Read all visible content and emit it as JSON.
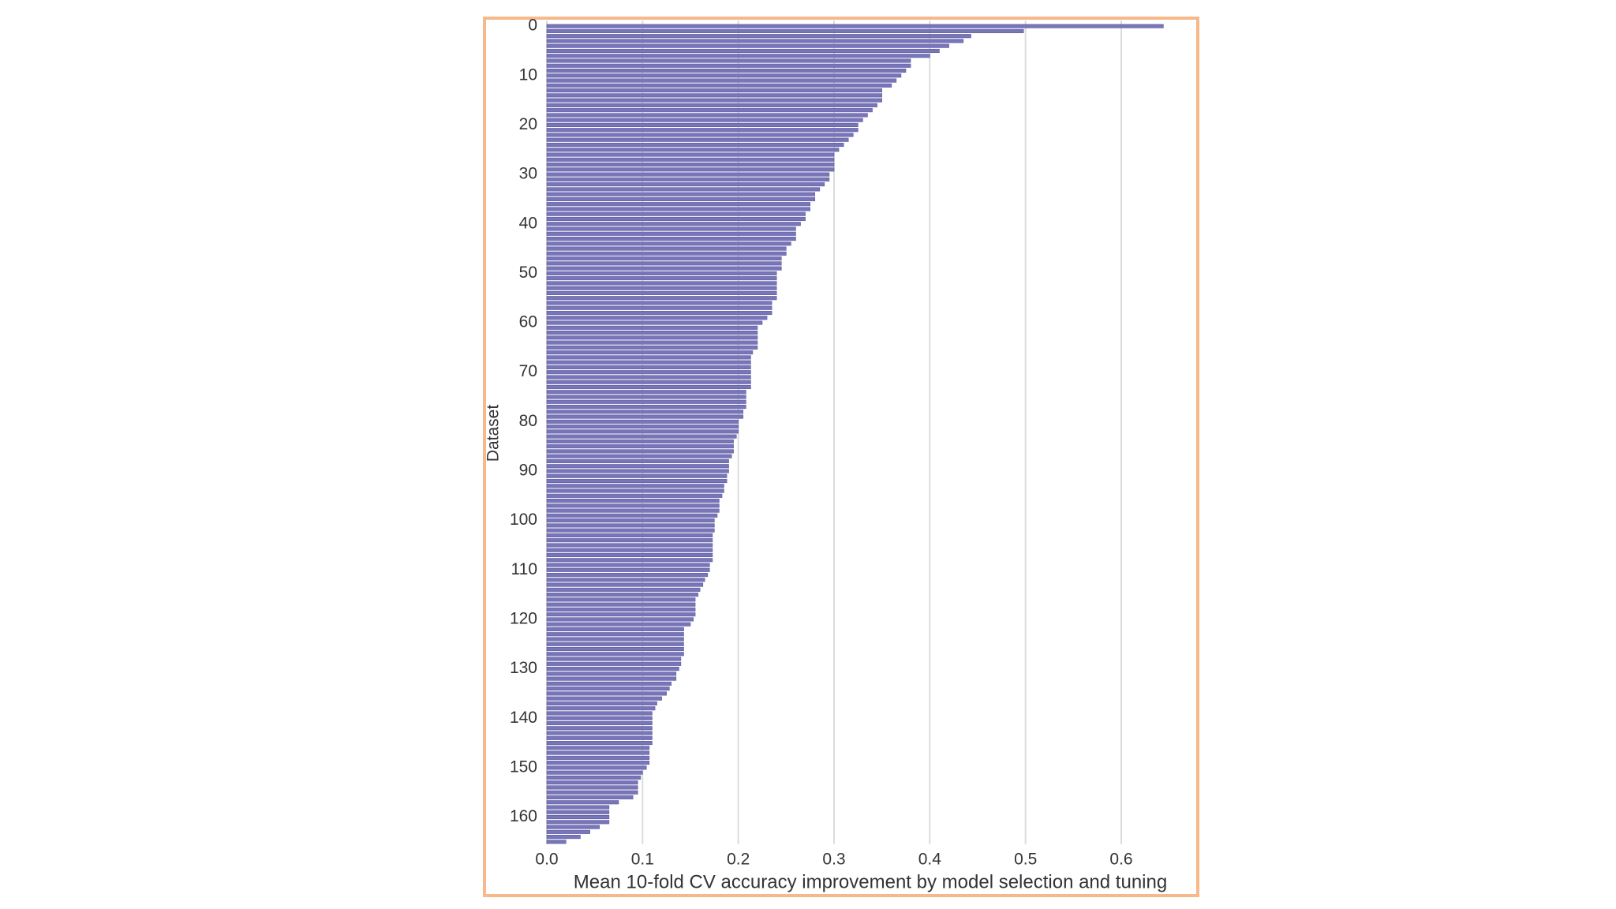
{
  "chart_data": {
    "type": "barh",
    "xlabel": "Mean 10-fold CV accuracy improvement by model selection and tuning",
    "ylabel": "Dataset",
    "categories": [
      "0",
      null,
      null,
      null,
      null,
      null,
      null,
      null,
      null,
      null,
      "10",
      null,
      null,
      null,
      null,
      null,
      null,
      null,
      null,
      null,
      "20",
      null,
      null,
      null,
      null,
      null,
      null,
      null,
      null,
      null,
      "30",
      null,
      null,
      null,
      null,
      null,
      null,
      null,
      null,
      null,
      "40",
      null,
      null,
      null,
      null,
      null,
      null,
      null,
      null,
      null,
      "50",
      null,
      null,
      null,
      null,
      null,
      null,
      null,
      null,
      null,
      "60",
      null,
      null,
      null,
      null,
      null,
      null,
      null,
      null,
      null,
      "70",
      null,
      null,
      null,
      null,
      null,
      null,
      null,
      null,
      null,
      "80",
      null,
      null,
      null,
      null,
      null,
      null,
      null,
      null,
      null,
      "90",
      null,
      null,
      null,
      null,
      null,
      null,
      null,
      null,
      null,
      "100",
      null,
      null,
      null,
      null,
      null,
      null,
      null,
      null,
      null,
      "110",
      null,
      null,
      null,
      null,
      null,
      null,
      null,
      null,
      null,
      "120",
      null,
      null,
      null,
      null,
      null,
      null,
      null,
      null,
      null,
      "130",
      null,
      null,
      null,
      null,
      null,
      null,
      null,
      null,
      null,
      "140",
      null,
      null,
      null,
      null,
      null,
      null,
      null,
      null,
      null,
      "150",
      null,
      null,
      null,
      null,
      null,
      null,
      null,
      null,
      null,
      "160",
      null,
      null,
      null,
      null,
      null
    ],
    "values": [
      0.644,
      0.498,
      0.443,
      0.435,
      0.42,
      0.41,
      0.4,
      0.38,
      0.38,
      0.375,
      0.37,
      0.365,
      0.36,
      0.35,
      0.35,
      0.35,
      0.345,
      0.34,
      0.335,
      0.33,
      0.325,
      0.325,
      0.32,
      0.315,
      0.31,
      0.305,
      0.3,
      0.3,
      0.3,
      0.3,
      0.295,
      0.295,
      0.29,
      0.285,
      0.28,
      0.28,
      0.275,
      0.275,
      0.27,
      0.27,
      0.265,
      0.26,
      0.26,
      0.26,
      0.255,
      0.25,
      0.25,
      0.245,
      0.245,
      0.245,
      0.24,
      0.24,
      0.24,
      0.24,
      0.24,
      0.24,
      0.235,
      0.235,
      0.235,
      0.23,
      0.225,
      0.22,
      0.22,
      0.22,
      0.22,
      0.22,
      0.215,
      0.213,
      0.213,
      0.213,
      0.213,
      0.213,
      0.213,
      0.213,
      0.208,
      0.208,
      0.208,
      0.208,
      0.205,
      0.205,
      0.2,
      0.2,
      0.2,
      0.198,
      0.195,
      0.195,
      0.195,
      0.193,
      0.19,
      0.19,
      0.19,
      0.188,
      0.188,
      0.185,
      0.185,
      0.183,
      0.18,
      0.18,
      0.18,
      0.178,
      0.175,
      0.175,
      0.175,
      0.173,
      0.173,
      0.173,
      0.173,
      0.173,
      0.173,
      0.17,
      0.17,
      0.168,
      0.165,
      0.163,
      0.16,
      0.158,
      0.155,
      0.155,
      0.155,
      0.155,
      0.153,
      0.15,
      0.143,
      0.143,
      0.143,
      0.143,
      0.143,
      0.143,
      0.14,
      0.14,
      0.138,
      0.135,
      0.135,
      0.13,
      0.128,
      0.125,
      0.12,
      0.115,
      0.113,
      0.11,
      0.11,
      0.11,
      0.11,
      0.11,
      0.11,
      0.11,
      0.107,
      0.107,
      0.107,
      0.107,
      0.104,
      0.1,
      0.098,
      0.095,
      0.095,
      0.095,
      0.09,
      0.075,
      0.065,
      0.065,
      0.065,
      0.065,
      0.055,
      0.045,
      0.035,
      0.02
    ],
    "color": "#7876b8",
    "xlim": [
      0,
      0.675
    ],
    "xticks": [
      {
        "value": 0,
        "label": "0.0"
      },
      0.1,
      0.2,
      0.3,
      0.4,
      0.5,
      0.6
    ],
    "grid": true
  }
}
